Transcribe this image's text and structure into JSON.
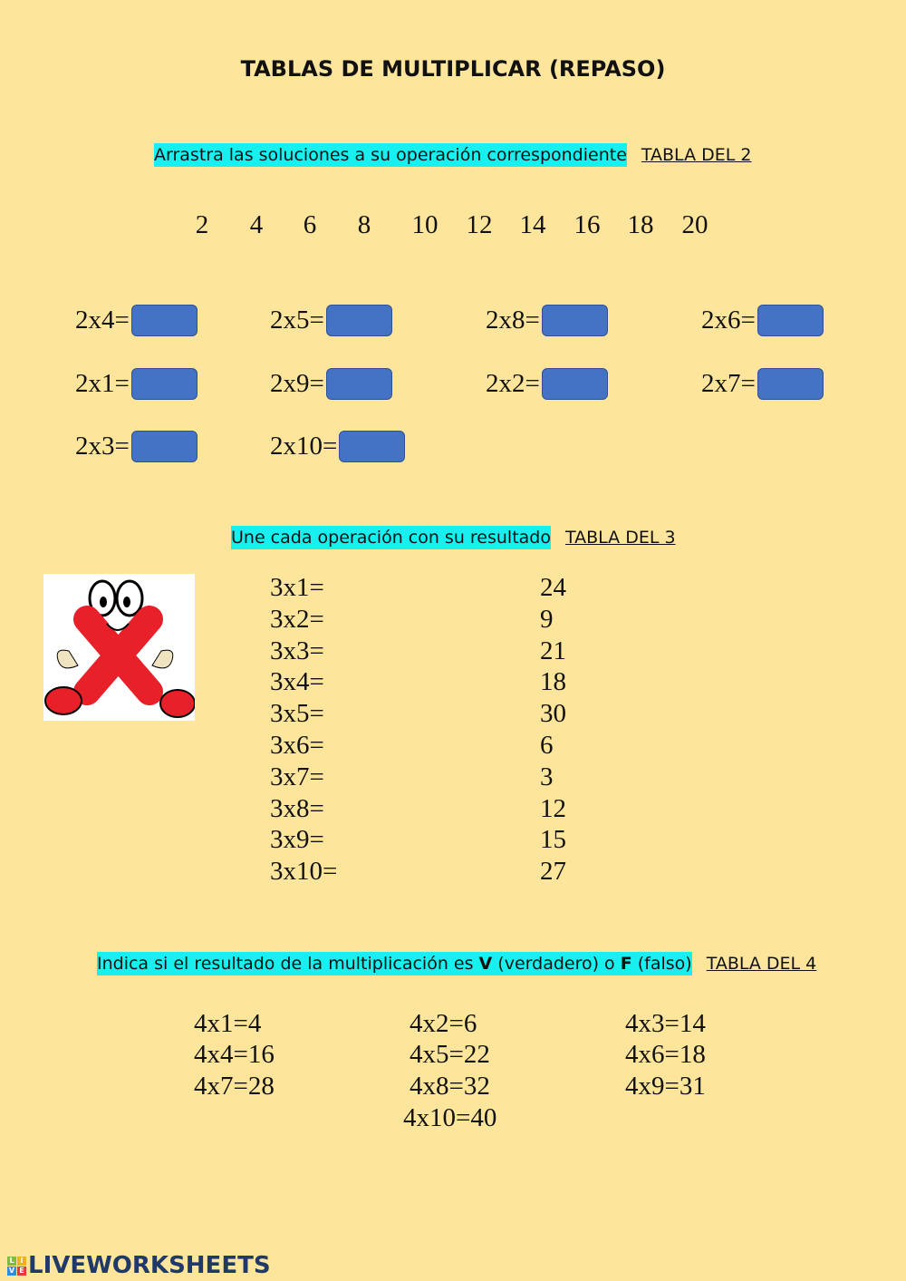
{
  "title": "TABLAS DE MULTIPLICAR (REPASO)",
  "section1": {
    "instruction": "Arrastra las soluciones a su operación correspondiente",
    "table": "TABLA DEL 2",
    "numbers": [
      "2",
      "4",
      "6",
      "8",
      "10",
      "12",
      "14",
      "16",
      "18",
      "20"
    ],
    "ops": [
      "2x4=",
      "2x5=",
      "2x8=",
      "2x6=",
      "2x1=",
      "2x9=",
      "2x2=",
      "2x7=",
      "2x3=",
      "2x10="
    ]
  },
  "section2": {
    "instruction": "Une cada operación con su resultado",
    "table": "TABLA DEL 3",
    "ops": [
      "3x1=",
      "3x2=",
      "3x3=",
      "3x4=",
      "3x5=",
      "3x6=",
      "3x7=",
      "3x8=",
      "3x9=",
      "3x10="
    ],
    "results": [
      "24",
      "9",
      "21",
      "18",
      "30",
      "6",
      "3",
      "12",
      "15",
      "27"
    ],
    "image": "red-x-cartoon"
  },
  "section3": {
    "instruction_pre": "Indica si el resultado de la multiplicación es ",
    "v": "V",
    "mid": " (verdadero) o ",
    "f": "F",
    "post": " (falso)",
    "table": "TABLA DEL 4",
    "items": [
      "4x1=4",
      "4x2=6",
      "4x3=14",
      "4x4=16",
      "4x5=22",
      "4x6=18",
      "4x7=28",
      "4x8=32",
      "4x9=31",
      "4x10=40"
    ]
  },
  "footer": {
    "logo": "LIVEWORKSHEETS",
    "logo_tiles": [
      "L",
      "I",
      "V",
      "E"
    ]
  },
  "colors": {
    "background": "#fde59c",
    "answer_box": "#4472c4",
    "highlight": "#18f0f0"
  }
}
